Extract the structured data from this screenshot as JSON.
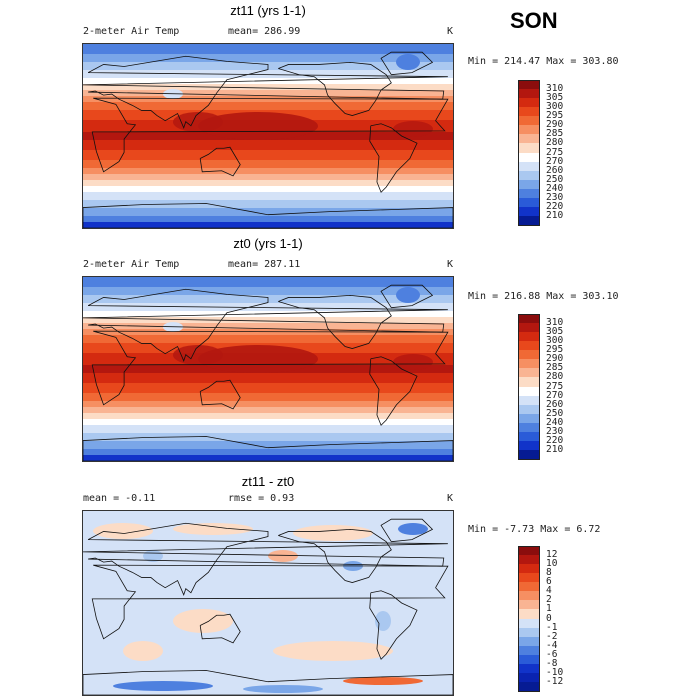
{
  "season": "SON",
  "panels": [
    {
      "title": "zt11 (yrs 1-1)",
      "left_label": "2-meter Air Temp",
      "center_label": "mean= 286.99",
      "units": "K",
      "minmax": "Min = 214.47 Max = 303.80",
      "levels": [
        "310",
        "305",
        "300",
        "295",
        "290",
        "285",
        "280",
        "275",
        "270",
        "260",
        "250",
        "240",
        "230",
        "220",
        "210"
      ],
      "colors": [
        "#8b0d0d",
        "#b3170f",
        "#d42a10",
        "#e8481c",
        "#f06935",
        "#f68f62",
        "#f9b493",
        "#fcdcc6",
        "#ffffff",
        "#d4e2f7",
        "#aac8f0",
        "#7aa6e8",
        "#4e80df",
        "#2a5bd8",
        "#1133c9",
        "#061b93"
      ]
    },
    {
      "title": "zt0 (yrs 1-1)",
      "left_label": "2-meter Air Temp",
      "center_label": "mean= 287.11",
      "units": "K",
      "minmax": "Min = 216.88 Max = 303.10",
      "levels": [
        "310",
        "305",
        "300",
        "295",
        "290",
        "285",
        "280",
        "275",
        "270",
        "260",
        "250",
        "240",
        "230",
        "220",
        "210"
      ],
      "colors": [
        "#8b0d0d",
        "#b3170f",
        "#d42a10",
        "#e8481c",
        "#f06935",
        "#f68f62",
        "#f9b493",
        "#fcdcc6",
        "#ffffff",
        "#d4e2f7",
        "#aac8f0",
        "#7aa6e8",
        "#4e80df",
        "#2a5bd8",
        "#1133c9",
        "#061b93"
      ]
    },
    {
      "title": "zt11 - zt0",
      "left_label": "mean = -0.11",
      "center_label": "rmse = 0.93",
      "units": "K",
      "minmax": "Min = -7.73 Max = 6.72",
      "levels": [
        "12",
        "10",
        "8",
        "6",
        "4",
        "2",
        "1",
        "0",
        "-1",
        "-2",
        "-4",
        "-6",
        "-8",
        "-10",
        "-12"
      ],
      "colors": [
        "#8b0d0d",
        "#b3170f",
        "#d42a10",
        "#e8481c",
        "#f06935",
        "#f68f62",
        "#f9b493",
        "#fcdcc6",
        "#d4e2f7",
        "#aac8f0",
        "#7aa6e8",
        "#4e80df",
        "#2a5bd8",
        "#1133c9",
        "#0a23b0",
        "#061b93"
      ]
    }
  ]
}
